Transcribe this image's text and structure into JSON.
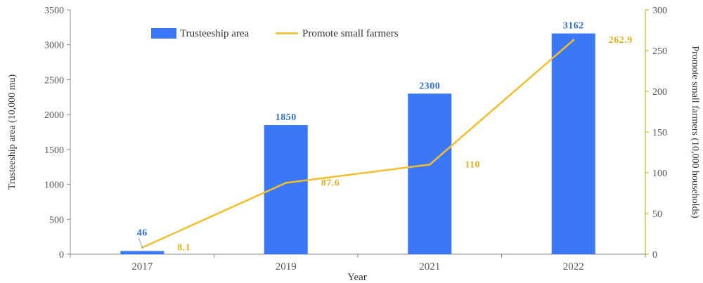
{
  "colors": {
    "bar": "#3a78f7",
    "line": "#f2be2c",
    "axis_left": "#888888",
    "axis_right": "#d9c24a"
  },
  "chart_data": {
    "type": "bar+line",
    "categories": [
      "2017",
      "2019",
      "2021",
      "2022"
    ],
    "xlabel": "Year",
    "ylabel_left": "Trusteeship area (10,000 mu)",
    "ylabel_right": "Promote small farmers (10,000 households)",
    "ylim_left": [
      0,
      3500
    ],
    "ylim_right": [
      0,
      300
    ],
    "yticks_left": [
      "0",
      "500",
      "1000",
      "1500",
      "2000",
      "2500",
      "3000",
      "3500"
    ],
    "yticks_right": [
      "0",
      "50",
      "100",
      "150",
      "200",
      "250",
      "300"
    ],
    "legend_position": "top-left",
    "series": [
      {
        "name": "Trusteeship area",
        "type": "bar",
        "axis": "left",
        "values": [
          46,
          1850,
          2300,
          3162
        ],
        "labels": [
          "46",
          "1850",
          "2300",
          "3162"
        ]
      },
      {
        "name": "Promote small farmers",
        "type": "line",
        "axis": "right",
        "values": [
          8.1,
          87.6,
          110,
          262.9
        ],
        "labels": [
          "8.1",
          "87.6",
          "110",
          "262.9"
        ]
      }
    ]
  }
}
